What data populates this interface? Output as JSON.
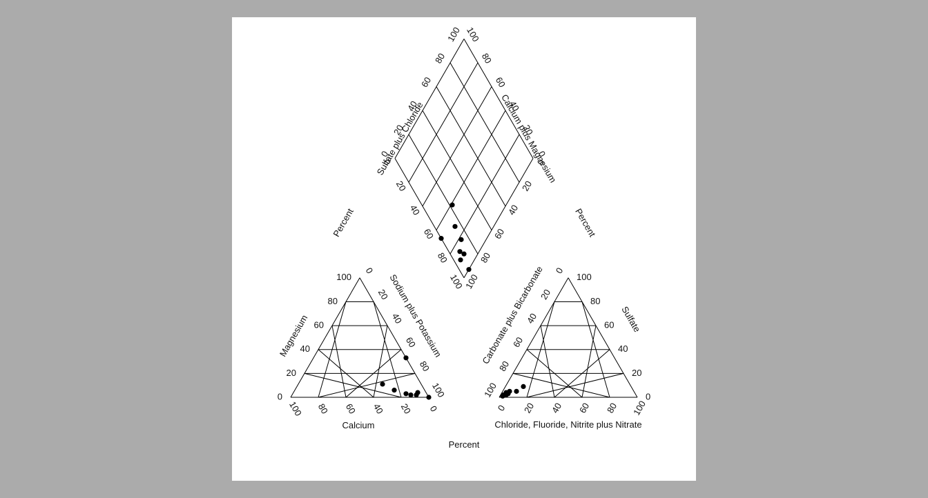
{
  "chart_data": {
    "type": "scatter",
    "diagram": "Piper trilinear diagram",
    "ticks": [
      "0",
      "20",
      "40",
      "60",
      "80",
      "100"
    ],
    "labels": {
      "magnesium": "Magnesium",
      "calcium": "Calcium",
      "sodium_potassium": "Sodium plus Potassium",
      "sulfate": "Sulfate",
      "chloride_group": "Chloride, Fluoride, Nitrite plus Nitrate",
      "carbonate_bicarbonate": "Carbonate plus Bicarbonate",
      "sulfate_chloride": "Sulfate plus Chloride",
      "calcium_magnesium": "Calcium plus Magnesium",
      "percent_left": "Percent",
      "percent_right": "Percent",
      "percent_bottom": "Percent"
    },
    "cation_triangle": {
      "axes": [
        "Calcium",
        "Magnesium",
        "Sodium plus Potassium"
      ],
      "points": [
        {
          "Calcium": 0,
          "Magnesium": 33,
          "Sodium plus Potassium": 67
        },
        {
          "Calcium": 28,
          "Magnesium": 11,
          "Sodium plus Potassium": 61
        },
        {
          "Calcium": 22,
          "Magnesium": 6,
          "Sodium plus Potassium": 72
        },
        {
          "Calcium": 15,
          "Magnesium": 3,
          "Sodium plus Potassium": 82
        },
        {
          "Calcium": 12,
          "Magnesium": 2,
          "Sodium plus Potassium": 86
        },
        {
          "Calcium": 8,
          "Magnesium": 2,
          "Sodium plus Potassium": 90
        },
        {
          "Calcium": 6,
          "Magnesium": 4,
          "Sodium plus Potassium": 90
        },
        {
          "Calcium": 0,
          "Magnesium": 0,
          "Sodium plus Potassium": 100
        }
      ]
    },
    "anion_triangle": {
      "axes": [
        "Chloride, Fluoride, Nitrite plus Nitrate",
        "Sulfate",
        "Carbonate plus Bicarbonate"
      ],
      "points": [
        {
          "Chloride, Fluoride, Nitrite plus Nitrate": 2,
          "Sulfate": 2,
          "Carbonate plus Bicarbonate": 96
        },
        {
          "Chloride, Fluoride, Nitrite plus Nitrate": 3,
          "Sulfate": 4,
          "Carbonate plus Bicarbonate": 93
        },
        {
          "Chloride, Fluoride, Nitrite plus Nitrate": 5,
          "Sulfate": 5,
          "Carbonate plus Bicarbonate": 90
        },
        {
          "Chloride, Fluoride, Nitrite plus Nitrate": 10,
          "Sulfate": 5,
          "Carbonate plus Bicarbonate": 85
        },
        {
          "Chloride, Fluoride, Nitrite plus Nitrate": 13,
          "Sulfate": 9,
          "Carbonate plus Bicarbonate": 78
        },
        {
          "Chloride, Fluoride, Nitrite plus Nitrate": 4,
          "Sulfate": 2,
          "Carbonate plus Bicarbonate": 94
        },
        {
          "Chloride, Fluoride, Nitrite plus Nitrate": 2,
          "Sulfate": 1,
          "Carbonate plus Bicarbonate": 97
        },
        {
          "Chloride, Fluoride, Nitrite plus Nitrate": 5,
          "Sulfate": 3,
          "Carbonate plus Bicarbonate": 92
        }
      ]
    },
    "diamond": {
      "axes": [
        "Sodium plus Potassium",
        "Sulfate plus Chloride"
      ],
      "points": [
        {
          "Sodium plus Potassium": 67,
          "Sulfate plus Chloride": 0
        },
        {
          "Sodium plus Potassium": 61,
          "Sulfate plus Chloride": 22
        },
        {
          "Sodium plus Potassium": 72,
          "Sulfate plus Chloride": 15
        },
        {
          "Sodium plus Potassium": 82,
          "Sulfate plus Chloride": 14
        },
        {
          "Sodium plus Potassium": 86,
          "Sulfate plus Chloride": 8
        },
        {
          "Sodium plus Potassium": 90,
          "Sulfate plus Chloride": 5
        },
        {
          "Sodium plus Potassium": 90,
          "Sulfate plus Chloride": 10
        },
        {
          "Sodium plus Potassium": 100,
          "Sulfate plus Chloride": 7
        }
      ]
    }
  }
}
